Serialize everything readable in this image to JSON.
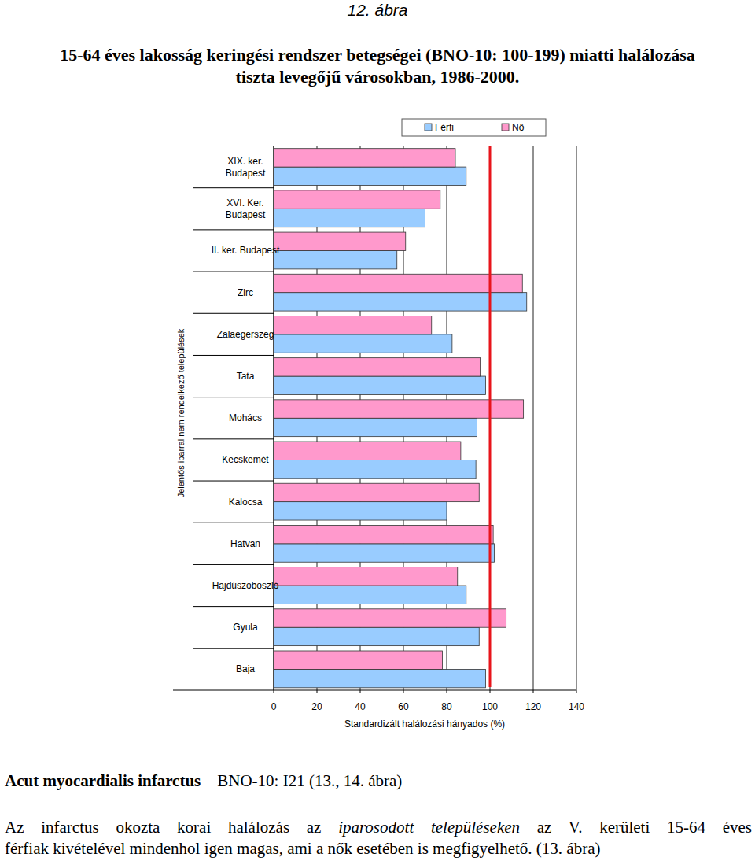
{
  "page": {
    "figure_label": "12. ábra",
    "heading_bold": "Acut myocardialis infarctus",
    "heading_rest": "– BNO-10: I21 (13., 14. ábra)",
    "paragraph_line1": [
      "Az infarctus okozta korai halálozás az",
      "iparosodott településeken",
      "az V. kerületi 15-64 éves"
    ],
    "paragraph_line2": "férfiak kivételével mindenhol igen magas, ami a nők esetében is megfigyelhető. (13. ábra)"
  },
  "chart_data": {
    "type": "bar",
    "orientation": "horizontal",
    "title": [
      "15-64 éves lakosság keringési rendszer betegségei (BNO-10: 100-199) miatti halálozása",
      "tiszta levegőjű városokban, 1986-2000."
    ],
    "y_label": "Jelentős iparral nem rendelkező települések",
    "x_label": "Standardizált halálozási hányados (%)",
    "categories": [
      "XIX. ker.\nBudapest",
      "XVI. Ker.\nBudapest",
      "II. ker. Budapest",
      "Zirc",
      "Zalaegerszeg",
      "Tata",
      "Mohács",
      "Kecskemét",
      "Kalocsa",
      "Hatvan",
      "Hajdúszoboszló",
      "Gyula",
      "Baja"
    ],
    "series": [
      {
        "name": "Férfi",
        "color": "#99ccff",
        "values": [
          89,
          70,
          57,
          117,
          82.5,
          98,
          94,
          93.5,
          80,
          102,
          89,
          95,
          98
        ]
      },
      {
        "name": "Nő",
        "color": "#ff99cc",
        "values": [
          84,
          77,
          61,
          115,
          73,
          95.5,
          115.5,
          86.5,
          95,
          101.5,
          85,
          107.5,
          78
        ]
      }
    ],
    "reference_value": 100,
    "xlim": [
      0,
      140
    ],
    "xticks": [
      0,
      20,
      40,
      60,
      80,
      100,
      120,
      140
    ],
    "grid": true,
    "legend": "top"
  }
}
